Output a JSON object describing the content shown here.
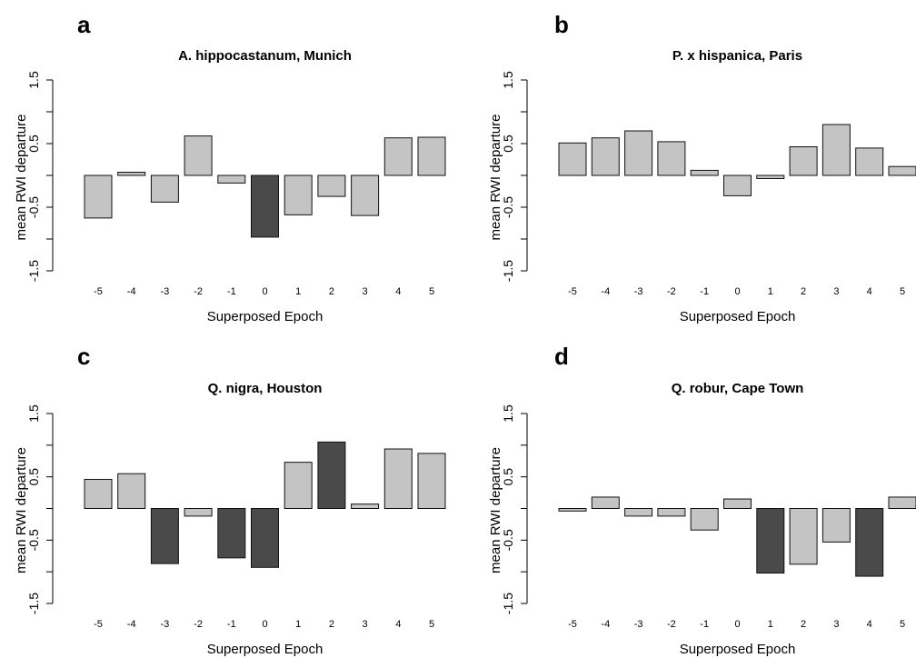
{
  "chart_data": [
    {
      "type": "bar",
      "panel": "a",
      "title": "A. hippocastanum, Munich",
      "xlabel": "Superposed Epoch",
      "ylabel": "mean RWI departure",
      "ylim": [
        -1.5,
        1.5
      ],
      "yticks": [
        -1.5,
        -0.5,
        0.5,
        1.5
      ],
      "ytick_labels": [
        "-1.5",
        "-0.5",
        "0.5",
        "1.5"
      ],
      "categories": [
        "-5",
        "-4",
        "-3",
        "-2",
        "-1",
        "0",
        "1",
        "2",
        "3",
        "4",
        "5"
      ],
      "values": [
        -0.67,
        0.05,
        -0.42,
        0.62,
        -0.12,
        -0.97,
        -0.62,
        -0.33,
        -0.63,
        0.59,
        0.6
      ],
      "highlighted": [
        false,
        false,
        false,
        false,
        false,
        true,
        false,
        false,
        false,
        false,
        false
      ]
    },
    {
      "type": "bar",
      "panel": "b",
      "title": "P. x hispanica, Paris",
      "xlabel": "Superposed Epoch",
      "ylabel": "mean RWI departure",
      "ylim": [
        -1.5,
        1.5
      ],
      "yticks": [
        -1.5,
        -0.5,
        0.5,
        1.5
      ],
      "ytick_labels": [
        "-1.5",
        "-0.5",
        "0.5",
        "1.5"
      ],
      "categories": [
        "-5",
        "-4",
        "-3",
        "-2",
        "-1",
        "0",
        "1",
        "2",
        "3",
        "4",
        "5"
      ],
      "values": [
        0.51,
        0.59,
        0.7,
        0.53,
        0.08,
        -0.32,
        -0.05,
        0.45,
        0.8,
        0.43,
        0.14
      ],
      "highlighted": [
        false,
        false,
        false,
        false,
        false,
        false,
        false,
        false,
        false,
        false,
        false
      ]
    },
    {
      "type": "bar",
      "panel": "c",
      "title": "Q. nigra, Houston",
      "xlabel": "Superposed Epoch",
      "ylabel": "mean RWI departure",
      "ylim": [
        -1.5,
        1.5
      ],
      "yticks": [
        -1.5,
        -0.5,
        0.5,
        1.5
      ],
      "ytick_labels": [
        "-1.5",
        "-0.5",
        "0.5",
        "1.5"
      ],
      "categories": [
        "-5",
        "-4",
        "-3",
        "-2",
        "-1",
        "0",
        "1",
        "2",
        "3",
        "4",
        "5"
      ],
      "values": [
        0.46,
        0.55,
        -0.87,
        -0.12,
        -0.78,
        -0.93,
        0.73,
        1.05,
        0.07,
        0.94,
        0.87
      ],
      "highlighted": [
        false,
        false,
        true,
        false,
        true,
        true,
        false,
        true,
        false,
        false,
        false
      ]
    },
    {
      "type": "bar",
      "panel": "d",
      "title": "Q. robur, Cape Town",
      "xlabel": "Superposed Epoch",
      "ylabel": "mean RWI departure",
      "ylim": [
        -1.5,
        1.5
      ],
      "yticks": [
        -1.5,
        -0.5,
        0.5,
        1.5
      ],
      "ytick_labels": [
        "-1.5",
        "-0.5",
        "0.5",
        "1.5"
      ],
      "categories": [
        "-5",
        "-4",
        "-3",
        "-2",
        "-1",
        "0",
        "1",
        "2",
        "3",
        "4",
        "5"
      ],
      "values": [
        -0.04,
        0.18,
        -0.12,
        -0.12,
        -0.34,
        0.15,
        -1.02,
        -0.88,
        -0.53,
        -1.07,
        0.18
      ],
      "highlighted": [
        false,
        false,
        false,
        false,
        false,
        false,
        true,
        false,
        false,
        true,
        false
      ]
    }
  ],
  "colors": {
    "bar_normal": "#c4c4c4",
    "bar_highlight": "#4a4a4a",
    "bar_stroke": "#111111"
  }
}
